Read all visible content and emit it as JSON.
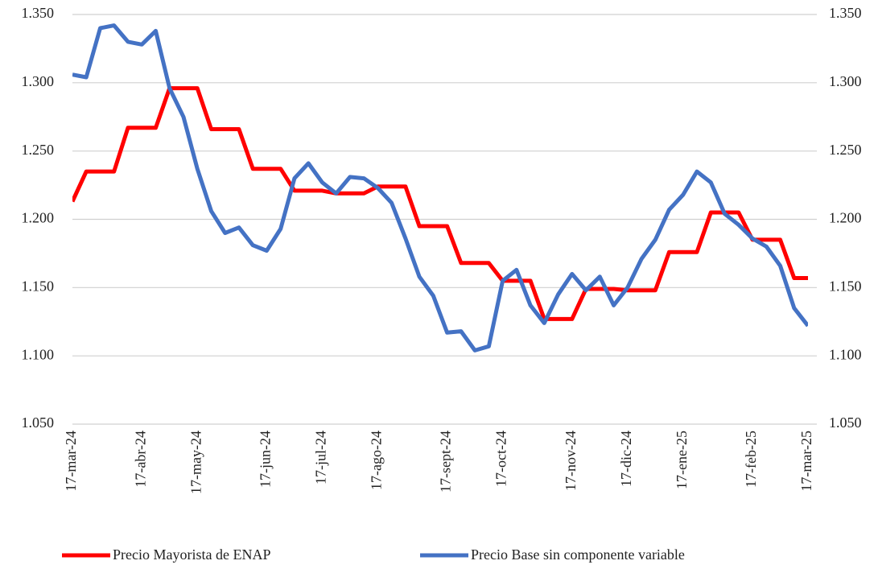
{
  "chart_data": {
    "type": "line",
    "categories": [
      "17-mar-24",
      null,
      null,
      null,
      null,
      "17-abr-24",
      null,
      null,
      null,
      "17-may-24",
      null,
      null,
      null,
      null,
      "17-jun-24",
      null,
      null,
      null,
      "17-jul-24",
      null,
      null,
      null,
      "17-ago-24",
      null,
      null,
      null,
      null,
      "17-sept-24",
      null,
      null,
      null,
      "17-oct-24",
      null,
      null,
      null,
      null,
      "17-nov-24",
      null,
      null,
      null,
      "17-dic-24",
      null,
      null,
      null,
      "17-ene-25",
      null,
      null,
      null,
      null,
      "17-feb-25",
      null,
      null,
      null,
      "17-mar-25"
    ],
    "series": [
      {
        "name": "Precio Mayorista de ENAP",
        "color": "#ff0000",
        "values": [
          1213,
          1235,
          1235,
          1235,
          1267,
          1267,
          1267,
          1296,
          1296,
          1296,
          1266,
          1266,
          1266,
          1237,
          1237,
          1237,
          1221,
          1221,
          1221,
          1219,
          1219,
          1219,
          1224,
          1224,
          1224,
          1195,
          1195,
          1195,
          1168,
          1168,
          1168,
          1155,
          1155,
          1155,
          1127,
          1127,
          1127,
          1149,
          1149,
          1149,
          1148,
          1148,
          1148,
          1176,
          1176,
          1176,
          1205,
          1205,
          1205,
          1185,
          1185,
          1185,
          1157,
          1157
        ]
      },
      {
        "name": "Precio Base sin componente variable",
        "color": "#4472c4",
        "values": [
          1306,
          1304,
          1340,
          1342,
          1330,
          1328,
          1338,
          1296,
          1275,
          1237,
          1206,
          1190,
          1194,
          1181,
          1177,
          1193,
          1230,
          1241,
          1227,
          1219,
          1231,
          1230,
          1223,
          1212,
          1186,
          1158,
          1144,
          1117,
          1118,
          1104,
          1107,
          1155,
          1163,
          1137,
          1124,
          1145,
          1160,
          1148,
          1158,
          1137,
          1150,
          1171,
          1185,
          1207,
          1218,
          1235,
          1227,
          1204,
          1196,
          1186,
          1180,
          1166,
          1135,
          1122
        ]
      }
    ],
    "ylim": [
      1050,
      1350
    ],
    "yticks": [
      {
        "value": 1050,
        "label": "1.050"
      },
      {
        "value": 1100,
        "label": "1.100"
      },
      {
        "value": 1150,
        "label": "1.150"
      },
      {
        "value": 1200,
        "label": "1.200"
      },
      {
        "value": 1250,
        "label": "1.250"
      },
      {
        "value": 1300,
        "label": "1.300"
      },
      {
        "value": 1350,
        "label": "1.350"
      }
    ],
    "y2lim": [
      1050,
      1350
    ],
    "y2ticks": [
      {
        "value": 1050,
        "label": "1.050"
      },
      {
        "value": 1100,
        "label": "1.100"
      },
      {
        "value": 1150,
        "label": "1.150"
      },
      {
        "value": 1200,
        "label": "1.200"
      },
      {
        "value": 1250,
        "label": "1.250"
      },
      {
        "value": 1300,
        "label": "1.300"
      },
      {
        "value": 1350,
        "label": "1.350"
      }
    ],
    "grid": true,
    "legend": "bottom"
  }
}
